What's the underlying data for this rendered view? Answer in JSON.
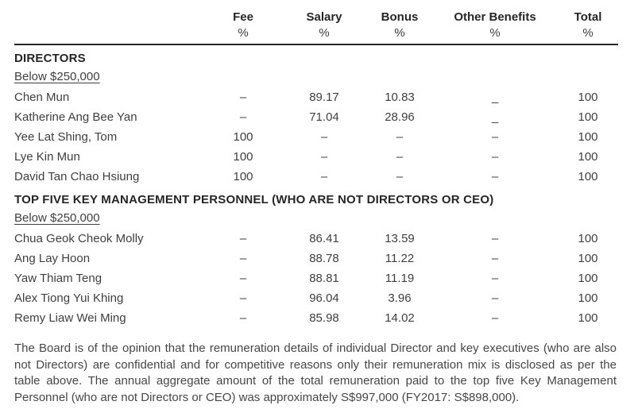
{
  "page": {
    "background": "#ffffff",
    "text_color": "#3f3f3f",
    "heading_color": "#262626"
  },
  "table": {
    "columns": [
      {
        "label": "",
        "unit": ""
      },
      {
        "label": "Fee",
        "unit": "%"
      },
      {
        "label": "Salary",
        "unit": "%"
      },
      {
        "label": "Bonus",
        "unit": "%"
      },
      {
        "label": "Other Benefits",
        "unit": "%"
      },
      {
        "label": "Total",
        "unit": "%"
      }
    ],
    "sections": [
      {
        "heading": "DIRECTORS",
        "subheading": "Below $250,000",
        "rows": [
          {
            "name": "Chen Mun",
            "fee": "–",
            "salary": "89.17",
            "bonus": "10.83",
            "other_benefits": "_",
            "total": "100"
          },
          {
            "name": "Katherine Ang Bee Yan",
            "fee": "–",
            "salary": "71.04",
            "bonus": "28.96",
            "other_benefits": "_",
            "total": "100"
          },
          {
            "name": "Yee Lat Shing, Tom",
            "fee": "100",
            "salary": "–",
            "bonus": "–",
            "other_benefits": "–",
            "total": "100"
          },
          {
            "name": "Lye Kin Mun",
            "fee": "100",
            "salary": "–",
            "bonus": "–",
            "other_benefits": "–",
            "total": "100"
          },
          {
            "name": "David Tan Chao Hsiung",
            "fee": "100",
            "salary": "–",
            "bonus": "–",
            "other_benefits": "–",
            "total": "100"
          }
        ]
      },
      {
        "heading": "TOP FIVE KEY MANAGEMENT PERSONNEL (WHO ARE NOT DIRECTORS OR CEO)",
        "subheading": "Below $250,000",
        "rows": [
          {
            "name": "Chua Geok Cheok Molly",
            "fee": "–",
            "salary": "86.41",
            "bonus": "13.59",
            "other_benefits": "–",
            "total": "100"
          },
          {
            "name": "Ang Lay Hoon",
            "fee": "–",
            "salary": "88.78",
            "bonus": "11.22",
            "other_benefits": "–",
            "total": "100"
          },
          {
            "name": "Yaw Thiam Teng",
            "fee": "–",
            "salary": "88.81",
            "bonus": "11.19",
            "other_benefits": "–",
            "total": "100"
          },
          {
            "name": "Alex Tiong Yui Khing",
            "fee": "–",
            "salary": "96.04",
            "bonus": "3.96",
            "other_benefits": "–",
            "total": "100"
          },
          {
            "name": "Remy Liaw Wei Ming",
            "fee": "–",
            "salary": "85.98",
            "bonus": "14.02",
            "other_benefits": "–",
            "total": "100"
          }
        ]
      }
    ]
  },
  "footnote": "The Board is of the opinion that the remuneration details of individual Director and key executives (who are also not Directors) are confidential and for competitive reasons only their remuneration mix is disclosed as per the table above. The annual aggregate amount of the total remuneration paid to the top five Key Management Personnel (who are not Directors or CEO) was approximately S$997,000 (FY2017: S$898,000)."
}
